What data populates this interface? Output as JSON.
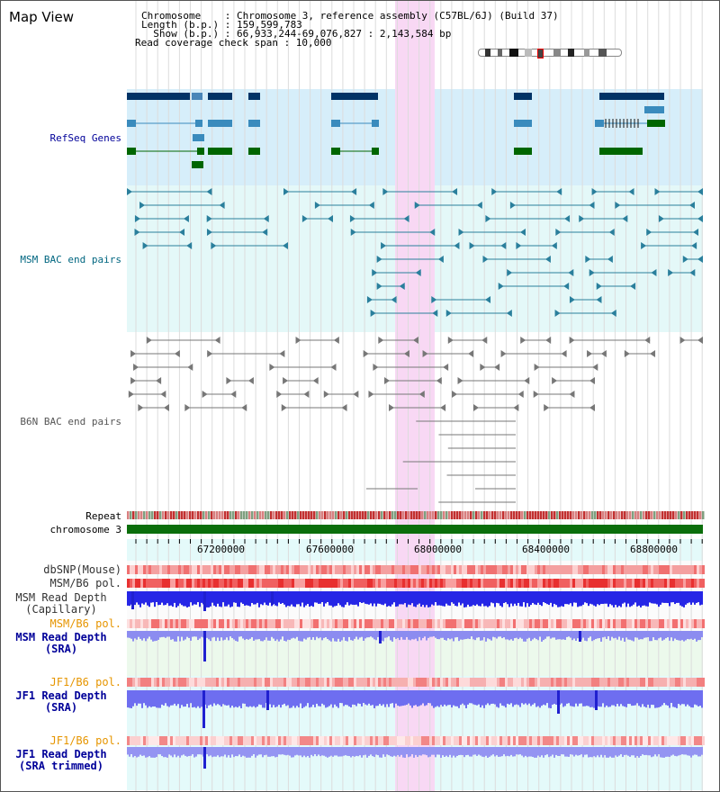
{
  "app": {
    "title": "Map View"
  },
  "info": {
    "chromosome_line": "Chromosome    : Chromosome 3, reference assembly (C57BL/6J) (Build 37)",
    "length_line": "Length (b.p.) : 159,599,783",
    "show_line": "  Show (b.p.) : 66,933,244-69,076,827 : 2,143,584 bp",
    "coverage_line": "Read coverage check span : 10,000"
  },
  "tracks": {
    "refseq": "RefSeq Genes",
    "msm_bac": "MSM BAC end pairs",
    "b6n_bac": "B6N BAC end pairs",
    "repeat": "Repeat",
    "chromosome": "chromosome 3",
    "dbsnp": "dbSNP(Mouse)",
    "msm_b6_pol": "MSM/B6 pol.",
    "msm_read_depth_cap": "MSM Read Depth\n(Capillary)",
    "msm_b6_pol_2": "MSM/B6 pol.",
    "msm_read_depth_sra": "MSM Read Depth\n(SRA)",
    "jf1_b6_pol": "JF1/B6 pol.",
    "jf1_read_depth_sra": "JF1 Read Depth\n(SRA)",
    "jf1_b6_pol_2": "JF1/B6 pol.",
    "jf1_read_depth_trim": "JF1 Read Depth\n(SRA trimmed)"
  },
  "axis": {
    "ticks": [
      "67200000",
      "67600000",
      "68000000",
      "68400000",
      "68800000"
    ]
  },
  "colors": {
    "highlight": "#f8d8f4",
    "refseq_bg": "#d6eefa",
    "msm_bac_bg": "#e4f8f8",
    "depth_bg": "#e4fafa",
    "gene_dark": "#003366",
    "gene_mid": "#3a8bbd",
    "gene_green": "#006600",
    "msm_feature": "#2a7f9c",
    "b6n_feature": "#777777",
    "label_blue": "#000099",
    "label_teal": "#006680",
    "label_orange": "#e69500",
    "label_gray": "#555555"
  }
}
